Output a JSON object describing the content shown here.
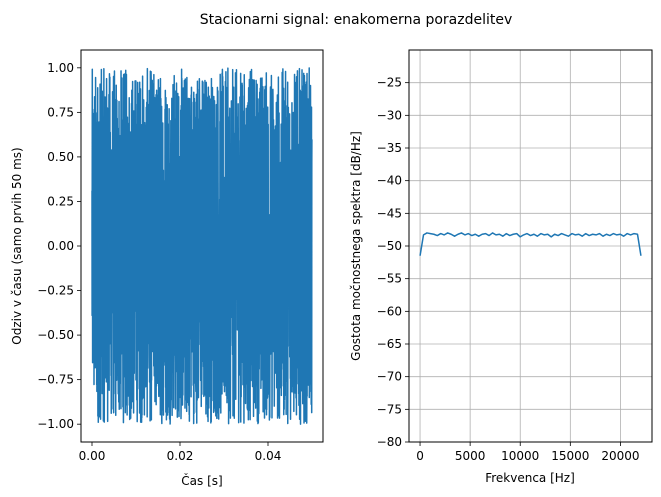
{
  "figure": {
    "suptitle": "Stacionarni signal: enakomerna porazdelitev",
    "line_color": "#1f77b4"
  },
  "chart_data": [
    {
      "type": "line",
      "title": "",
      "xlabel": "Čas [s]",
      "ylabel": "Odziv v času (samo prvih 50 ms)",
      "xlim": [
        -0.0025,
        0.0525
      ],
      "ylim": [
        -1.1,
        1.1
      ],
      "xticks": [
        0.0,
        0.02,
        0.04
      ],
      "xtick_labels": [
        "0.00",
        "0.02",
        "0.04"
      ],
      "yticks": [
        -1.0,
        -0.75,
        -0.5,
        -0.25,
        0.0,
        0.25,
        0.5,
        0.75,
        1.0
      ],
      "ytick_labels": [
        "−1.00",
        "−0.75",
        "−0.50",
        "−0.25",
        "0.00",
        "0.25",
        "0.50",
        "0.75",
        "1.00"
      ],
      "grid": false,
      "signal": {
        "distribution": "uniform",
        "x_range": [
          0.0,
          0.05
        ],
        "y_range": [
          -1.0,
          1.0
        ],
        "sample_rate_hz": 44100
      }
    },
    {
      "type": "line",
      "title": "",
      "xlabel": "Frekvenca [Hz]",
      "ylabel": "Gostota močnostnega spektra [dB/Hz]",
      "xlim": [
        -1102.5,
        23152.5
      ],
      "ylim": [
        -80,
        -20
      ],
      "xticks": [
        0,
        5000,
        10000,
        15000,
        20000
      ],
      "xtick_labels": [
        "0",
        "5000",
        "10000",
        "15000",
        "20000"
      ],
      "yticks": [
        -80,
        -75,
        -70,
        -65,
        -60,
        -55,
        -50,
        -45,
        -40,
        -35,
        -30,
        -25
      ],
      "ytick_labels": [
        "−80",
        "−75",
        "−70",
        "−65",
        "−60",
        "−55",
        "−50",
        "−45",
        "−40",
        "−35",
        "−30",
        "−25"
      ],
      "grid": true,
      "series": [
        {
          "x": [
            0,
            344.5,
            689.1,
            1033.6,
            1378.1,
            1722.7,
            2067.2,
            2411.7,
            2756.2,
            3100.8,
            3445.3,
            3789.8,
            4134.4,
            4478.9,
            4823.4,
            5168.0,
            5512.5,
            5857.0,
            6201.6,
            6546.1,
            6890.6,
            7235.2,
            7579.7,
            7924.2,
            8268.8,
            8613.3,
            8957.8,
            9302.3,
            9646.9,
            9991.4,
            10335.9,
            10680.5,
            11025.0,
            11369.5,
            11714.1,
            12058.6,
            12403.1,
            12747.7,
            13092.2,
            13436.7,
            13781.2,
            14125.8,
            14470.3,
            14814.8,
            15159.4,
            15503.9,
            15848.4,
            16193.0,
            16537.5,
            16882.0,
            17226.6,
            17571.1,
            17915.6,
            18260.2,
            18604.7,
            18949.2,
            19293.8,
            19638.3,
            19982.8,
            20327.3,
            20671.9,
            21016.4,
            21360.9,
            21705.5,
            22050.0
          ],
          "y": [
            -51.5,
            -48.3,
            -48.0,
            -48.1,
            -48.2,
            -48.4,
            -48.1,
            -48.3,
            -48.0,
            -48.2,
            -48.5,
            -48.2,
            -48.0,
            -48.3,
            -48.1,
            -48.4,
            -48.2,
            -48.5,
            -48.2,
            -48.1,
            -48.4,
            -48.0,
            -48.3,
            -48.2,
            -48.5,
            -48.1,
            -48.4,
            -48.2,
            -48.1,
            -48.6,
            -48.3,
            -48.1,
            -48.4,
            -48.2,
            -48.5,
            -48.1,
            -48.3,
            -48.2,
            -48.6,
            -48.2,
            -48.4,
            -48.1,
            -48.3,
            -48.5,
            -48.1,
            -48.3,
            -48.2,
            -48.5,
            -48.1,
            -48.4,
            -48.2,
            -48.3,
            -48.1,
            -48.5,
            -48.2,
            -48.4,
            -48.1,
            -48.3,
            -48.2,
            -48.5,
            -48.1,
            -48.3,
            -48.1,
            -48.2,
            -51.5
          ]
        }
      ]
    }
  ]
}
